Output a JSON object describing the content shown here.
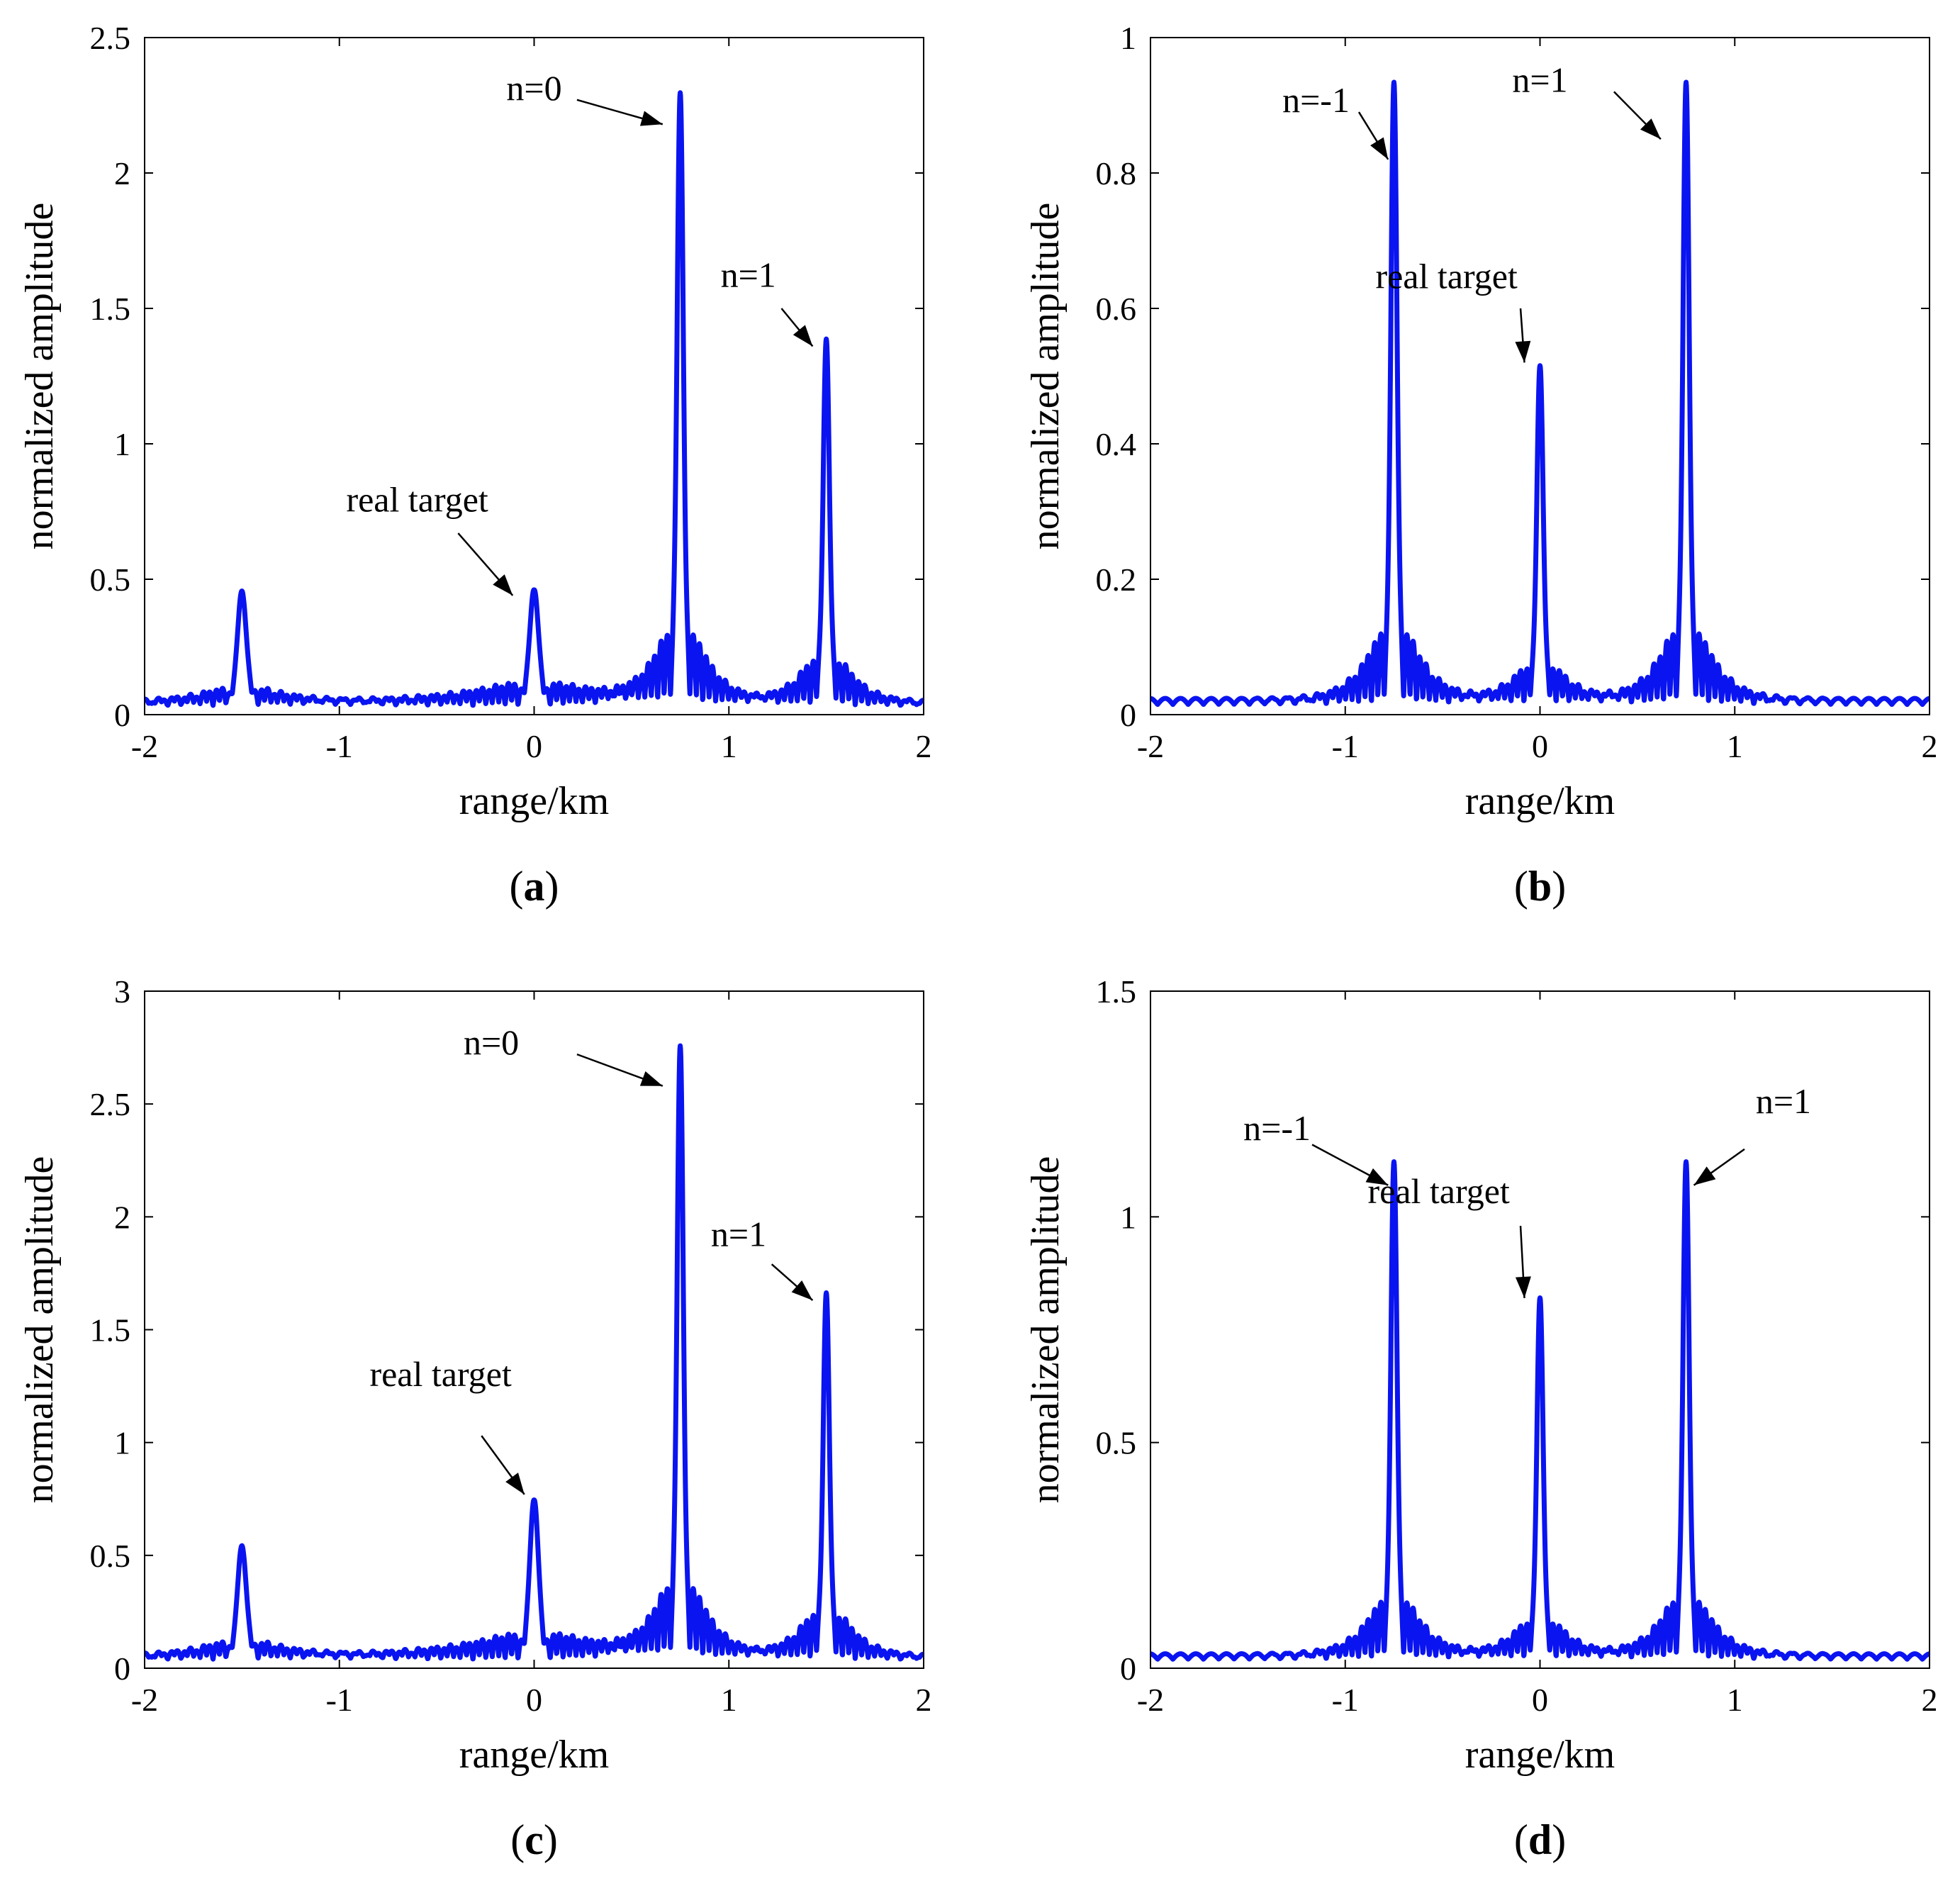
{
  "figure": {
    "line_color": "#0a14f0"
  },
  "chart_data": [
    {
      "id": "a",
      "type": "line",
      "panel_label": "a",
      "xlabel": "range/km",
      "ylabel": "normalized amplitude",
      "xlim": [
        -2,
        2
      ],
      "ylim": [
        0,
        2.5
      ],
      "xticks": [
        -2,
        -1,
        0,
        1,
        2
      ],
      "yticks": [
        0,
        0.5,
        1,
        1.5,
        2,
        2.5
      ],
      "xtick_labels": [
        "-2",
        "-1",
        "0",
        "1",
        "2"
      ],
      "ytick_labels": [
        "0",
        "0.5",
        "1",
        "1.5",
        "2",
        "2.5"
      ],
      "series": [
        {
          "name": "response",
          "peaks": [
            {
              "x": -1.5,
              "height": 0.42,
              "width": 0.022,
              "sidelobe": 0.09,
              "decay": 0.22
            },
            {
              "x": 0.0,
              "height": 0.43,
              "width": 0.022,
              "sidelobe": 0.1,
              "decay": 0.4
            },
            {
              "x": 0.75,
              "height": 2.24,
              "width": 0.016,
              "sidelobe": 0.5,
              "decay": 0.12
            },
            {
              "x": 1.5,
              "height": 1.35,
              "width": 0.016,
              "sidelobe": 0.32,
              "decay": 0.12
            }
          ],
          "baseline": 0.03
        }
      ],
      "annotations": [
        {
          "text": "n=0",
          "text_x": 0.0,
          "text_y": 2.27,
          "tip_x": 0.66,
          "tip_y": 2.18,
          "tail_x": 0.22,
          "tail_y": 2.27
        },
        {
          "text": "n=1",
          "text_x": 1.1,
          "text_y": 1.58,
          "tip_x": 1.43,
          "tip_y": 1.36,
          "tail_x": 1.27,
          "tail_y": 1.5
        },
        {
          "text": "real target",
          "text_x": -0.6,
          "text_y": 0.75,
          "tip_x": -0.11,
          "tip_y": 0.44,
          "tail_x": -0.39,
          "tail_y": 0.67
        }
      ]
    },
    {
      "id": "b",
      "type": "line",
      "panel_label": "b",
      "xlabel": "range/km",
      "ylabel": "normalized amplitude",
      "xlim": [
        -2,
        2
      ],
      "ylim": [
        0,
        1
      ],
      "xticks": [
        -2,
        -1,
        0,
        1,
        2
      ],
      "yticks": [
        0,
        0.2,
        0.4,
        0.6,
        0.8,
        1
      ],
      "xtick_labels": [
        "-2",
        "-1",
        "0",
        "1",
        "2"
      ],
      "ytick_labels": [
        "0",
        "0.2",
        "0.4",
        "0.6",
        "0.8",
        "1"
      ],
      "series": [
        {
          "name": "response",
          "peaks": [
            {
              "x": -0.75,
              "height": 0.91,
              "width": 0.016,
              "sidelobe": 0.2,
              "decay": 0.12
            },
            {
              "x": 0.0,
              "height": 0.5,
              "width": 0.016,
              "sidelobe": 0.1,
              "decay": 0.12
            },
            {
              "x": 0.75,
              "height": 0.91,
              "width": 0.016,
              "sidelobe": 0.2,
              "decay": 0.12
            }
          ],
          "baseline": 0.015
        }
      ],
      "annotations": [
        {
          "text": "n=-1",
          "text_x": -1.15,
          "text_y": 0.89,
          "tip_x": -0.78,
          "tip_y": 0.82,
          "tail_x": -0.93,
          "tail_y": 0.89
        },
        {
          "text": "n=1",
          "text_x": 0.0,
          "text_y": 0.92,
          "tip_x": 0.62,
          "tip_y": 0.85,
          "tail_x": 0.38,
          "tail_y": 0.92
        },
        {
          "text": "real target",
          "text_x": -0.48,
          "text_y": 0.63,
          "tip_x": -0.08,
          "tip_y": 0.52,
          "tail_x": -0.1,
          "tail_y": 0.6
        }
      ]
    },
    {
      "id": "c",
      "type": "line",
      "panel_label": "c",
      "xlabel": "range/km",
      "ylabel": "normalized amplitude",
      "xlim": [
        -2,
        2
      ],
      "ylim": [
        0,
        3
      ],
      "xticks": [
        -2,
        -1,
        0,
        1,
        2
      ],
      "yticks": [
        0,
        0.5,
        1,
        1.5,
        2,
        2.5,
        3
      ],
      "xtick_labels": [
        "-2",
        "-1",
        "0",
        "1",
        "2"
      ],
      "ytick_labels": [
        "0",
        "0.5",
        "1",
        "1.5",
        "2",
        "2.5",
        "3"
      ],
      "series": [
        {
          "name": "response",
          "peaks": [
            {
              "x": -1.5,
              "height": 0.5,
              "width": 0.022,
              "sidelobe": 0.11,
              "decay": 0.22
            },
            {
              "x": 0.0,
              "height": 0.71,
              "width": 0.022,
              "sidelobe": 0.14,
              "decay": 0.4
            },
            {
              "x": 0.75,
              "height": 2.69,
              "width": 0.016,
              "sidelobe": 0.6,
              "decay": 0.12
            },
            {
              "x": 1.5,
              "height": 1.62,
              "width": 0.016,
              "sidelobe": 0.38,
              "decay": 0.12
            }
          ],
          "baseline": 0.035
        }
      ],
      "annotations": [
        {
          "text": "n=0",
          "text_x": -0.22,
          "text_y": 2.72,
          "tip_x": 0.66,
          "tip_y": 2.58,
          "tail_x": 0.22,
          "tail_y": 2.72
        },
        {
          "text": "n=1",
          "text_x": 1.05,
          "text_y": 1.87,
          "tip_x": 1.43,
          "tip_y": 1.63,
          "tail_x": 1.22,
          "tail_y": 1.79
        },
        {
          "text": "real target",
          "text_x": -0.48,
          "text_y": 1.25,
          "tip_x": -0.05,
          "tip_y": 0.77,
          "tail_x": -0.27,
          "tail_y": 1.03
        }
      ]
    },
    {
      "id": "d",
      "type": "line",
      "panel_label": "d",
      "xlabel": "range/km",
      "ylabel": "normalized amplitude",
      "xlim": [
        -2,
        2
      ],
      "ylim": [
        0,
        1.5
      ],
      "xticks": [
        -2,
        -1,
        0,
        1,
        2
      ],
      "yticks": [
        0,
        0.5,
        1,
        1.5
      ],
      "xtick_labels": [
        "-2",
        "-1",
        "0",
        "1",
        "2"
      ],
      "ytick_labels": [
        "0",
        "0.5",
        "1",
        "1.5"
      ],
      "series": [
        {
          "name": "response",
          "peaks": [
            {
              "x": -0.75,
              "height": 1.09,
              "width": 0.016,
              "sidelobe": 0.24,
              "decay": 0.12
            },
            {
              "x": 0.0,
              "height": 0.8,
              "width": 0.016,
              "sidelobe": 0.15,
              "decay": 0.12
            },
            {
              "x": 0.75,
              "height": 1.09,
              "width": 0.016,
              "sidelobe": 0.24,
              "decay": 0.12
            }
          ],
          "baseline": 0.02
        }
      ],
      "annotations": [
        {
          "text": "n=-1",
          "text_x": -1.35,
          "text_y": 1.17,
          "tip_x": -0.78,
          "tip_y": 1.07,
          "tail_x": -1.17,
          "tail_y": 1.16
        },
        {
          "text": "n=1",
          "text_x": 1.25,
          "text_y": 1.23,
          "tip_x": 0.79,
          "tip_y": 1.07,
          "tail_x": 1.05,
          "tail_y": 1.15
        },
        {
          "text": "real target",
          "text_x": -0.52,
          "text_y": 1.03,
          "tip_x": -0.08,
          "tip_y": 0.82,
          "tail_x": -0.1,
          "tail_y": 0.98
        }
      ]
    }
  ]
}
